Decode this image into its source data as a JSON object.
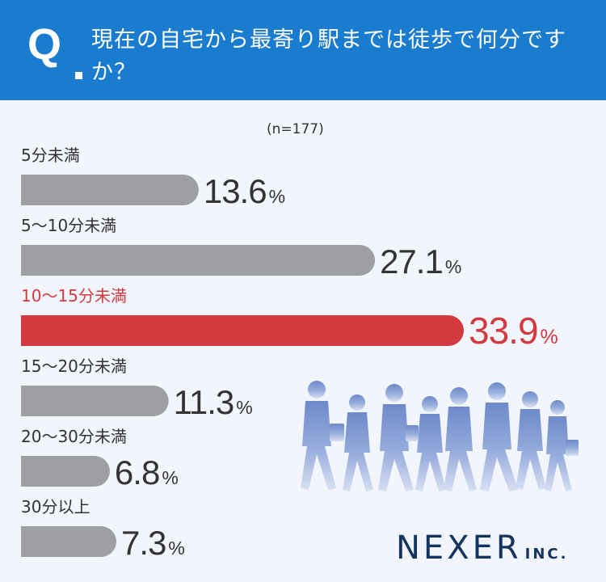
{
  "question": {
    "mark": "Q",
    "text": "現在の自宅から最寄り駅までは徒歩で何分ですか？"
  },
  "sample_note": "(n=177)",
  "logo": {
    "name": "NEXER",
    "suffix": "INC."
  },
  "colors": {
    "header": "#1a7ccf",
    "bar_default": "#9d9fa2",
    "bar_highlight": "#d33a3f",
    "text_default": "#333333"
  },
  "chart_data": {
    "type": "bar",
    "orientation": "horizontal",
    "unit": "%",
    "categories": [
      "5分未満",
      "5〜10分未満",
      "10〜15分未満",
      "15〜20分未満",
      "20〜30分未満",
      "30分以上"
    ],
    "values": [
      13.6,
      27.1,
      33.9,
      11.3,
      6.8,
      7.3
    ],
    "value_labels": [
      "13.6",
      "27.1",
      "33.9",
      "11.3",
      "6.8",
      "7.3"
    ],
    "highlight_index": 2,
    "xlim": [
      0,
      33.9
    ],
    "grid": false,
    "legend": "none"
  }
}
